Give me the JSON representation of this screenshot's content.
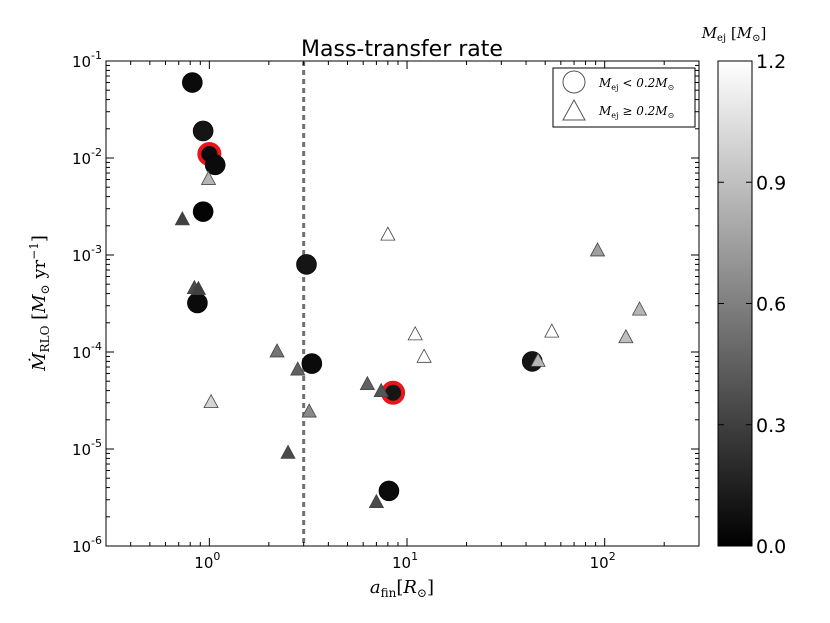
{
  "chart_data": {
    "type": "scatter",
    "title": "Mass-transfer rate",
    "xlabel": "a_fin[R_⊙]",
    "ylabel": "Ṁ_RLO [M_⊙ yr^−1]",
    "xscale": "log",
    "yscale": "log",
    "xlim": [
      0.3,
      300
    ],
    "ylim": [
      1e-06,
      0.1
    ],
    "x_ticks": [
      {
        "base": "10",
        "exp": "0"
      },
      {
        "base": "10",
        "exp": "1"
      },
      {
        "base": "10",
        "exp": "2"
      }
    ],
    "y_ticks": [
      {
        "base": "10",
        "exp": "-6"
      },
      {
        "base": "10",
        "exp": "-5"
      },
      {
        "base": "10",
        "exp": "-4"
      },
      {
        "base": "10",
        "exp": "-3"
      },
      {
        "base": "10",
        "exp": "-2"
      },
      {
        "base": "10",
        "exp": "-1"
      }
    ],
    "vline_x": 3.0,
    "vline_style": "dashed",
    "legend": {
      "placement": "top-right",
      "entries": [
        {
          "marker": "circle",
          "label": "M_ej < 0.2M_⊙"
        },
        {
          "marker": "triangle",
          "label": "M_ej ≥ 0.2M_⊙"
        }
      ]
    },
    "colorbar": {
      "label": "M_ej [M_⊙]",
      "min": 0.0,
      "max": 1.2,
      "tick_labels": [
        "0.0",
        "0.3",
        "0.6",
        "0.9",
        "1.2"
      ],
      "colormap": "gray"
    },
    "series": [
      {
        "marker": "circle",
        "points": [
          {
            "x": 0.82,
            "y": 0.06,
            "mej": 0.05,
            "highlight": false
          },
          {
            "x": 0.93,
            "y": 0.019,
            "mej": 0.1,
            "highlight": false
          },
          {
            "x": 1.0,
            "y": 0.011,
            "mej": 0.05,
            "highlight": true
          },
          {
            "x": 1.07,
            "y": 0.0085,
            "mej": 0.05,
            "highlight": false
          },
          {
            "x": 0.93,
            "y": 0.0028,
            "mej": 0.02,
            "highlight": false
          },
          {
            "x": 0.87,
            "y": 0.00032,
            "mej": 0.05,
            "highlight": false
          },
          {
            "x": 3.1,
            "y": 0.0008,
            "mej": 0.1,
            "highlight": false
          },
          {
            "x": 3.3,
            "y": 7.6e-05,
            "mej": 0.05,
            "highlight": false
          },
          {
            "x": 8.5,
            "y": 3.8e-05,
            "mej": 0.1,
            "highlight": true
          },
          {
            "x": 8.1,
            "y": 3.7e-06,
            "mej": 0.05,
            "highlight": false
          },
          {
            "x": 43.0,
            "y": 8e-05,
            "mej": 0.1,
            "highlight": false
          }
        ]
      },
      {
        "marker": "triangle",
        "points": [
          {
            "x": 0.73,
            "y": 0.0023,
            "mej": 0.3
          },
          {
            "x": 0.84,
            "y": 0.00045,
            "mej": 0.35
          },
          {
            "x": 0.88,
            "y": 0.00044,
            "mej": 0.3
          },
          {
            "x": 0.99,
            "y": 0.006,
            "mej": 0.85
          },
          {
            "x": 1.02,
            "y": 3e-05,
            "mej": 1.0
          },
          {
            "x": 2.2,
            "y": 0.0001,
            "mej": 0.55
          },
          {
            "x": 2.5,
            "y": 9e-06,
            "mej": 0.35
          },
          {
            "x": 2.8,
            "y": 6.5e-05,
            "mej": 0.45
          },
          {
            "x": 3.2,
            "y": 2.4e-05,
            "mej": 0.65
          },
          {
            "x": 6.3,
            "y": 4.6e-05,
            "mej": 0.45
          },
          {
            "x": 7.0,
            "y": 2.8e-06,
            "mej": 0.35
          },
          {
            "x": 7.4,
            "y": 3.9e-05,
            "mej": 0.4
          },
          {
            "x": 8.0,
            "y": 0.0016,
            "mej": 1.2
          },
          {
            "x": 11.0,
            "y": 0.00015,
            "mej": 1.2
          },
          {
            "x": 12.2,
            "y": 8.8e-05,
            "mej": 1.2
          },
          {
            "x": 46.0,
            "y": 8e-05,
            "mej": 0.85
          },
          {
            "x": 54.0,
            "y": 0.00016,
            "mej": 1.2
          },
          {
            "x": 92.0,
            "y": 0.0011,
            "mej": 0.75
          },
          {
            "x": 128.0,
            "y": 0.00014,
            "mej": 0.9
          },
          {
            "x": 150.0,
            "y": 0.00027,
            "mej": 0.85
          }
        ]
      }
    ]
  }
}
